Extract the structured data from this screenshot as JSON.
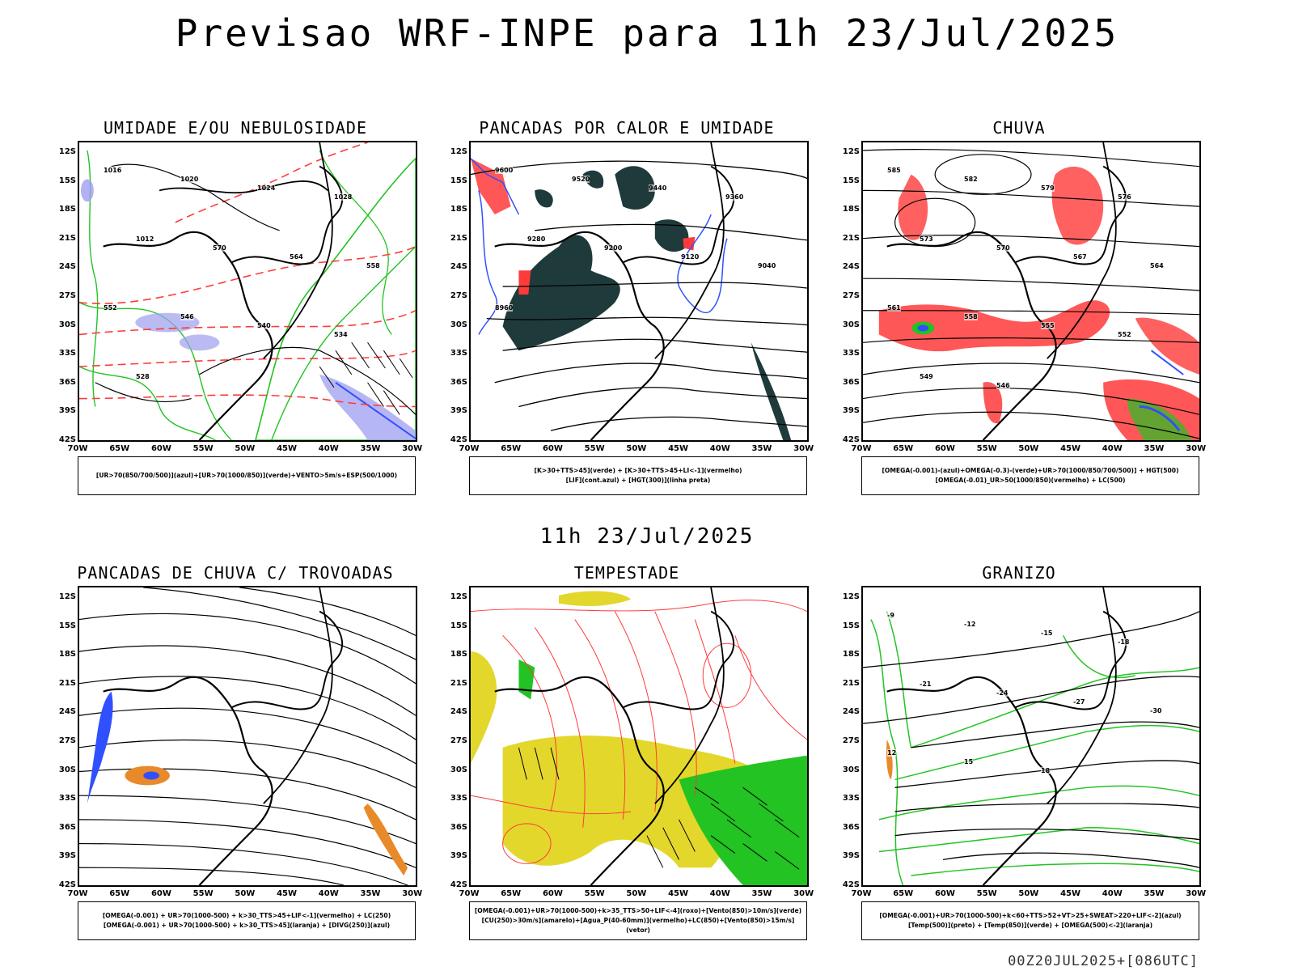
{
  "header": {
    "title": "Previsao WRF-INPE  para 11h 23/Jul/2025"
  },
  "mid_date": "11h 23/Jul/2025",
  "run_id": "00Z20JUL2025+[086UTC]",
  "axes": {
    "lat_labels": [
      "12S",
      "15S",
      "18S",
      "21S",
      "24S",
      "27S",
      "30S",
      "33S",
      "36S",
      "39S",
      "42S"
    ],
    "lon_labels": [
      "70W",
      "65W",
      "60W",
      "55W",
      "50W",
      "45W",
      "40W",
      "35W",
      "30W"
    ]
  },
  "panels": [
    {
      "id": "umidade",
      "title": "UMIDADE E/OU NEBULOSIDADE",
      "legend": [
        "[UR>70(850/700/500)](azul)+[UR>70(1000/850)](verde)+VENTO>5m/s+ESP(500/1000)"
      ]
    },
    {
      "id": "pancadas",
      "title": "PANCADAS POR CALOR E UMIDADE",
      "legend": [
        "[K>30+TTS>45](verde) + [K>30+TTS>45+LI<-1](vermelho)",
        "[LIF](cont.azul) + [HGT(300)](linha preta)"
      ]
    },
    {
      "id": "chuva",
      "title": "CHUVA",
      "legend": [
        "[OMEGA(-0.001)-(azul)+OMEGA(-0.3)-(verde)+UR>70(1000/850/700/500)] + HGT(500)",
        "[OMEGA(-0.01)_UR>50(1000/850)(vermelho) + LC(500)"
      ]
    },
    {
      "id": "trovoadas",
      "title": "PANCADAS DE CHUVA C/ TROVOADAS",
      "legend": [
        "[OMEGA(-0.001) + UR>70(1000-500) + k>30_TTS>45+LIF<-1](vermelho) + LC(250)",
        "[OMEGA(-0.001) + UR>70(1000-500) + k>30_TTS>45](laranja) + [DIVG(250)](azul)"
      ]
    },
    {
      "id": "tempestade",
      "title": "TEMPESTADE",
      "legend": [
        "[OMEGA(-0.001)+UR>70(1000-500)+k>35_TTS>50+LIF<-4](roxo)+[Vento(850)>10m/s](verde)",
        "[CU(250)>30m/s](amarelo)+[Agua_P(40-60mm)](vermelho)+LC(850)+[Vento(850)>15m/s](vetor)"
      ]
    },
    {
      "id": "granizo",
      "title": "GRANIZO",
      "legend": [
        "[OMEGA(-0.001)+UR>70(1000-500)+k<60+TTS>52+VT>25+SWEAT>220+LIF<-2](azul)",
        "[Temp(500)](preto) + [Temp(850)](verde) + [OMEGA(500)<-2](laranja)"
      ]
    }
  ],
  "contour_labels": {
    "umidade": [
      "1016",
      "1020",
      "1024",
      "1028",
      "1012",
      "570",
      "564",
      "558",
      "552",
      "546",
      "540",
      "534",
      "528"
    ],
    "pancadas": [
      "9600",
      "9520",
      "9440",
      "9360",
      "9280",
      "9200",
      "9120",
      "9040",
      "8960"
    ],
    "chuva": [
      "585",
      "582",
      "579",
      "576",
      "573",
      "570",
      "567",
      "564",
      "561",
      "558",
      "555",
      "552",
      "549",
      "546"
    ],
    "granizo": [
      "-9",
      "-12",
      "-15",
      "-18",
      "-21",
      "-24",
      "-27",
      "-30",
      "12",
      "15",
      "18"
    ]
  },
  "colors": {
    "green": "#22c322",
    "red": "#ff3a3a",
    "blue": "#3050ff",
    "darkteal": "#1f3a3a",
    "yellow": "#e3d72c",
    "orange": "#e88a2a",
    "lavender": "#9e9ef0"
  }
}
